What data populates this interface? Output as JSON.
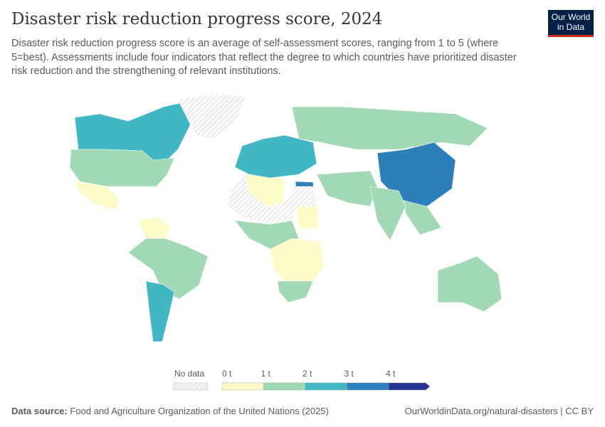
{
  "header": {
    "title": "Disaster risk reduction progress score, 2024",
    "subtitle": "Disaster risk reduction progress score is an average of self-assessment scores, ranging from 1 to 5 (where 5=best). Assessments include four indicators that reflect the degree to which countries have prioritized disaster risk reduction and the strengthening of relevant institutions.",
    "logo": "Our World in Data"
  },
  "legend": {
    "no_data_label": "No data",
    "ticks": [
      "0 t",
      "1 t",
      "2 t",
      "3 t",
      "4 t"
    ],
    "colors": [
      "#fdfcc9",
      "#a1d9b4",
      "#41b6c4",
      "#2c7fb8",
      "#253494"
    ],
    "no_data_color": "#e0e0e0"
  },
  "map": {
    "regions": [
      {
        "name": "Canada",
        "bin": 2
      },
      {
        "name": "United States",
        "bin": 1
      },
      {
        "name": "Mexico",
        "bin": 0
      },
      {
        "name": "Greenland",
        "bin": null
      },
      {
        "name": "Venezuela/Colombia",
        "bin": 0
      },
      {
        "name": "Brazil",
        "bin": 1
      },
      {
        "name": "Argentina",
        "bin": 2
      },
      {
        "name": "Algeria",
        "bin": 0
      },
      {
        "name": "Egypt",
        "bin": 3
      },
      {
        "name": "Sudan",
        "bin": 0
      },
      {
        "name": "Southern Africa",
        "bin": 0
      },
      {
        "name": "South Africa",
        "bin": 1
      },
      {
        "name": "Europe",
        "bin": 2
      },
      {
        "name": "Russia",
        "bin": 1
      },
      {
        "name": "China",
        "bin": 3
      },
      {
        "name": "India",
        "bin": 1
      },
      {
        "name": "Australia",
        "bin": 1
      },
      {
        "name": "Sahara",
        "bin": null
      }
    ]
  },
  "footer": {
    "source_label": "Data source:",
    "source": "Food and Agriculture Organization of the United Nations (2025)",
    "url": "OurWorldinData.org/natural-disasters | CC BY"
  }
}
